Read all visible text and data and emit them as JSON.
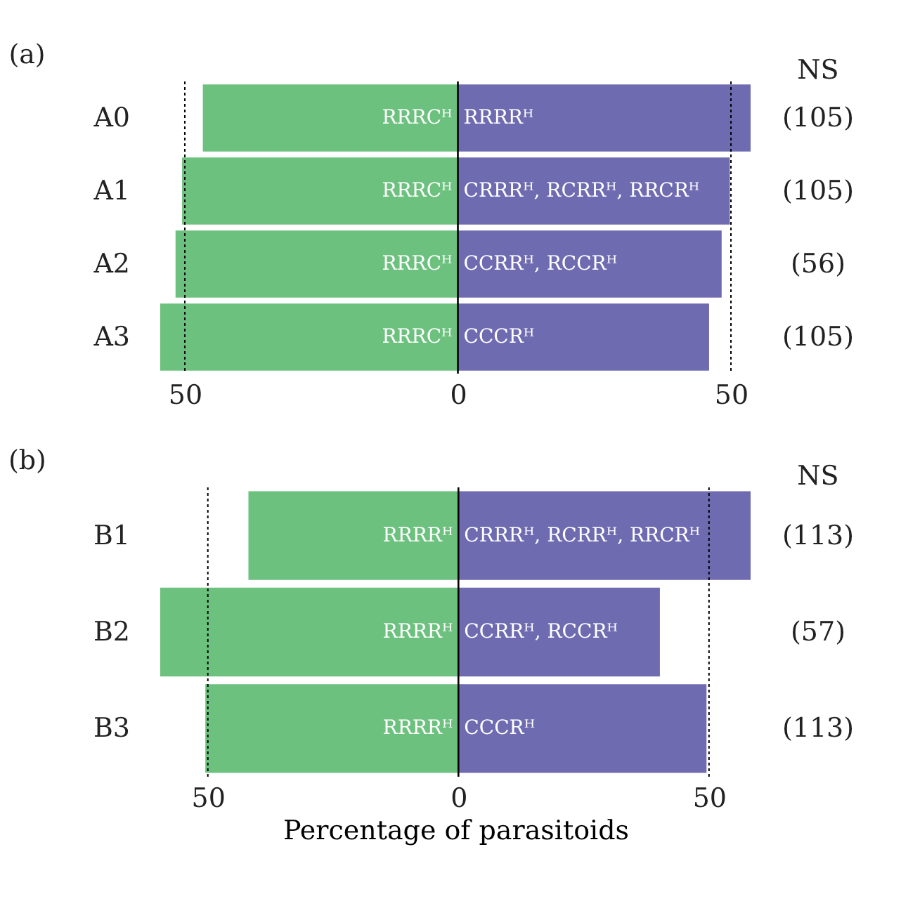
{
  "chart_data": [
    {
      "type": "bar",
      "title": "(a)",
      "orientation": "horizontal",
      "stacked": true,
      "categories": [
        "A0",
        "A1",
        "A2",
        "A3"
      ],
      "series": [
        {
          "color": "#6cc17e",
          "values": [
            -46.7,
            -50.5,
            -51.7,
            -54.5
          ],
          "value_labels": [
            "RRRCᴴ",
            "RRRCᴴ",
            "RRRCᴴ",
            "RRRCᴴ"
          ]
        },
        {
          "color": "#6f6bb1",
          "values": [
            53.6,
            49.8,
            48.3,
            46.0
          ],
          "value_labels": [
            "RRRRᴴ",
            "CRRRᴴ, RCRRᴴ, RRCRᴴ",
            "CCRRᴴ, RCCRᴴ",
            "CCCRᴴ"
          ]
        }
      ],
      "xlim": [
        -54.5,
        53.6
      ],
      "xticks": [
        {
          "value": -50,
          "label": "50"
        },
        0,
        50
      ],
      "ref_lines": [
        {
          "axis": "x",
          "value": -50,
          "line_style": "dotted"
        },
        {
          "axis": "x",
          "value": 0,
          "line_style": "solid"
        },
        {
          "axis": "x",
          "value": 50,
          "line_style": "dotted"
        }
      ],
      "annotations": [
        "NS",
        "(105)",
        "(105)",
        "(56)",
        "(105)"
      ],
      "grid": false
    },
    {
      "type": "bar",
      "title": "(b)",
      "orientation": "horizontal",
      "stacked": true,
      "xlabel": "Percentage of parasitoids",
      "categories": [
        "B1",
        "B2",
        "B3"
      ],
      "series": [
        {
          "color": "#6cc17e",
          "values": [
            -41.9,
            -59.5,
            -50.5
          ],
          "value_labels": [
            "RRRRᴴ",
            "RRRRᴴ",
            "RRRRᴴ"
          ]
        },
        {
          "color": "#6f6bb1",
          "values": [
            58.3,
            40.2,
            49.5
          ],
          "value_labels": [
            "CRRRᴴ, RCRRᴴ, RRCRᴴ",
            "CCRRᴴ, RCCRᴴ",
            "CCCRᴴ"
          ]
        }
      ],
      "xlim": [
        -59.5,
        58.3
      ],
      "xticks": [
        {
          "value": -50,
          "label": "50"
        },
        0,
        50
      ],
      "ref_lines": [
        {
          "axis": "x",
          "value": -50,
          "line_style": "dotted"
        },
        {
          "axis": "x",
          "value": 0,
          "line_style": "solid"
        },
        {
          "axis": "x",
          "value": 50,
          "line_style": "dotted"
        }
      ],
      "annotations": [
        "NS",
        "(113)",
        "(57)",
        "(113)"
      ],
      "grid": false
    }
  ]
}
